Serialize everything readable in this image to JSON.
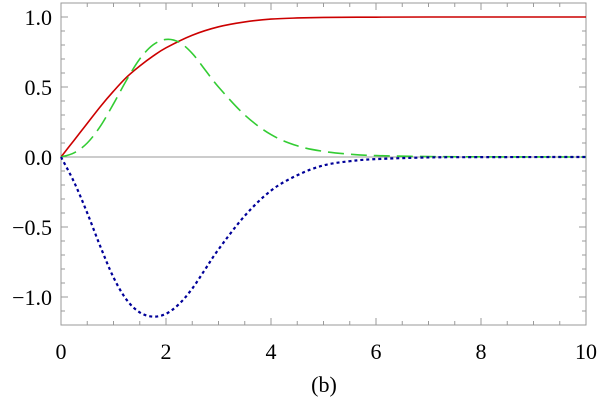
{
  "chart_data": {
    "type": "line",
    "title": "",
    "xlabel": "",
    "ylabel": "",
    "caption": "(b)",
    "xlim": [
      0,
      10
    ],
    "ylim": [
      -1.2,
      1.1
    ],
    "xticks": [
      0,
      2,
      4,
      6,
      8,
      10
    ],
    "yticks": [
      -1.0,
      -0.5,
      0.0,
      0.5,
      1.0
    ],
    "xtick_labels": [
      "0",
      "2",
      "4",
      "6",
      "8",
      "10"
    ],
    "ytick_labels": [
      "−1.0",
      "−0.5",
      "0.0",
      "0.5",
      "1.0"
    ],
    "grid": false,
    "zero_line": true,
    "series": [
      {
        "color": "#cc0000",
        "style": "solid",
        "x": [
          0,
          0.25,
          0.5,
          0.75,
          1.0,
          1.25,
          1.5,
          1.75,
          2.0,
          2.5,
          3.0,
          3.5,
          4.0,
          4.5,
          5.0,
          6.0,
          7.0,
          8.0,
          9.0,
          10.0
        ],
        "y": [
          0,
          0.12,
          0.24,
          0.36,
          0.47,
          0.57,
          0.65,
          0.72,
          0.78,
          0.87,
          0.93,
          0.965,
          0.985,
          0.993,
          0.997,
          0.999,
          1.0,
          1.0,
          1.0,
          1.0
        ]
      },
      {
        "color": "#33cc33",
        "style": "dashed",
        "x": [
          0,
          0.25,
          0.5,
          0.75,
          1.0,
          1.25,
          1.5,
          1.75,
          2.0,
          2.25,
          2.5,
          2.75,
          3.0,
          3.5,
          4.0,
          4.5,
          5.0,
          5.5,
          6.0,
          7.0,
          8.0,
          10.0
        ],
        "y": [
          0,
          0.03,
          0.1,
          0.22,
          0.38,
          0.55,
          0.7,
          0.8,
          0.84,
          0.82,
          0.74,
          0.62,
          0.5,
          0.3,
          0.16,
          0.08,
          0.04,
          0.02,
          0.01,
          0.003,
          0.001,
          0.0
        ]
      },
      {
        "color": "#000099",
        "style": "dotted",
        "x": [
          0,
          0.25,
          0.5,
          0.75,
          1.0,
          1.25,
          1.5,
          1.75,
          2.0,
          2.25,
          2.5,
          2.75,
          3.0,
          3.5,
          4.0,
          4.5,
          5.0,
          5.5,
          6.0,
          7.0,
          8.0,
          10.0
        ],
        "y": [
          0,
          -0.18,
          -0.4,
          -0.64,
          -0.86,
          -1.02,
          -1.11,
          -1.14,
          -1.12,
          -1.05,
          -0.94,
          -0.8,
          -0.66,
          -0.42,
          -0.24,
          -0.13,
          -0.06,
          -0.03,
          -0.015,
          -0.003,
          -0.001,
          0.0
        ]
      }
    ]
  }
}
